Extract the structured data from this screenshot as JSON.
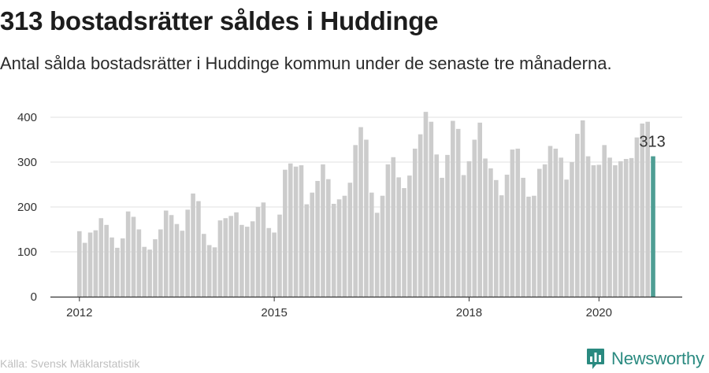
{
  "header": {
    "title": "313 bostadsrätter såldes i Huddinge",
    "subtitle": "Antal sålda bostadsrätter i Huddinge kommun under de senaste tre månaderna."
  },
  "footer": {
    "source": "Källa: Svensk Mäklarstatistik",
    "brand_name": "Newsworthy"
  },
  "colors": {
    "bar": "#cccccc",
    "highlight": "#4e9e94",
    "grid": "#e1e1e1",
    "axis": "#333333",
    "brand": "#2a8a80"
  },
  "chart_data": {
    "type": "bar",
    "title": "313 bostadsrätter såldes i Huddinge",
    "xlabel": "",
    "ylabel": "",
    "ylim": [
      0,
      420
    ],
    "yticks": [
      0,
      100,
      200,
      300,
      400
    ],
    "grid": true,
    "x_tick_labels": [
      {
        "label": "2012",
        "index": 0
      },
      {
        "label": "2015",
        "index": 36
      },
      {
        "label": "2018",
        "index": 72
      },
      {
        "label": "2020",
        "index": 96
      }
    ],
    "start": "2012-01",
    "frequency": "monthly",
    "values": [
      146,
      120,
      143,
      148,
      175,
      160,
      132,
      109,
      130,
      190,
      178,
      150,
      111,
      105,
      128,
      150,
      192,
      182,
      162,
      147,
      194,
      230,
      213,
      140,
      115,
      110,
      170,
      175,
      180,
      188,
      160,
      156,
      168,
      200,
      210,
      153,
      143,
      183,
      283,
      297,
      290,
      293,
      206,
      232,
      258,
      295,
      262,
      207,
      217,
      225,
      254,
      338,
      378,
      350,
      232,
      187,
      225,
      295,
      311,
      266,
      242,
      270,
      330,
      362,
      412,
      390,
      317,
      265,
      316,
      392,
      374,
      271,
      302,
      350,
      388,
      308,
      286,
      260,
      226,
      272,
      328,
      330,
      265,
      223,
      225,
      285,
      295,
      336,
      330,
      310,
      261,
      300,
      363,
      393,
      313,
      293,
      294,
      338,
      310,
      293,
      302,
      307,
      309,
      355,
      386,
      390,
      313
    ],
    "highlight": {
      "index": 106,
      "value": 313,
      "label": "313"
    }
  }
}
